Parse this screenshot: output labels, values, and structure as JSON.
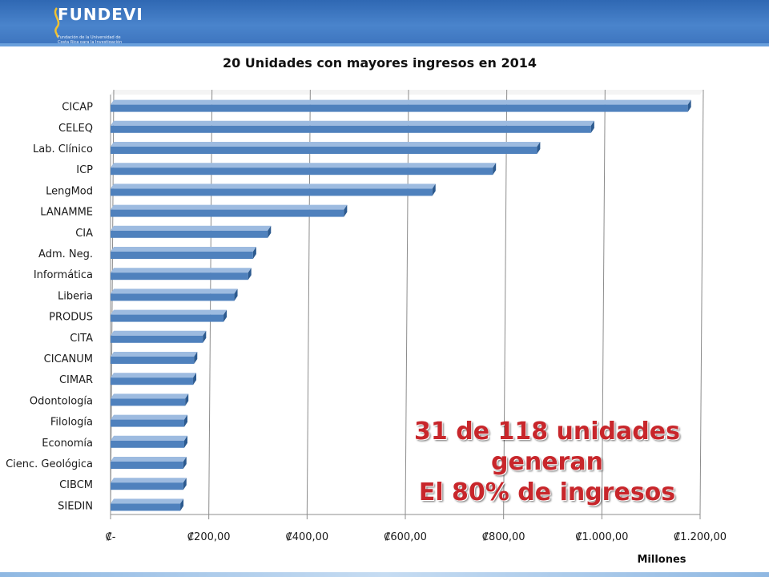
{
  "header": {
    "logo_text": "FUNDEVI",
    "logo_subtitle": "Fundación de la Universidad de Costa Rica para la Investigación"
  },
  "colors": {
    "header": "#3f78c4",
    "bar_front": "#4f81bd",
    "bar_side": "#2c5a8f",
    "callout": "#c8262b"
  },
  "callout": {
    "line1": "31 de 118 unidades generan",
    "line2": "El 80% de ingresos"
  },
  "chart_data": {
    "type": "bar",
    "orientation": "horizontal",
    "style": "3d",
    "title": "20 Unidades con mayores ingresos en 2014",
    "xlabel": "Millones",
    "ylabel": "",
    "xlim": [
      0,
      1200
    ],
    "x_tick_values": [
      0,
      200,
      400,
      600,
      800,
      1000,
      1200
    ],
    "x_tick_labels": [
      "₡-",
      "₡200,00",
      "₡400,00",
      "₡600,00",
      "₡800,00",
      "₡1.000,00",
      "₡1.200,00"
    ],
    "grid": "vertical",
    "legend": "none",
    "categories": [
      "CICAP",
      "CELEQ",
      "Lab. Clínico",
      "ICP",
      "LengMod",
      "LANAMME",
      "CIA",
      "Adm. Neg.",
      "Informática",
      "Liberia",
      "PRODUS",
      "CITA",
      "CICANUM",
      "CIMAR",
      "Odontología",
      "Filología",
      "Economía",
      "Cienc. Geológica",
      "CIBCM",
      "SIEDIN"
    ],
    "values": [
      1175,
      978,
      868,
      778,
      655,
      475,
      320,
      290,
      280,
      252,
      230,
      188,
      170,
      168,
      152,
      150,
      150,
      148,
      148,
      142
    ]
  }
}
